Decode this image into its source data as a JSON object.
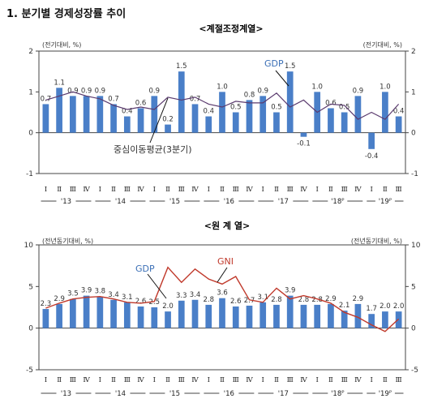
{
  "heading": "1. 분기별 경제성장률 추이",
  "chart_data": [
    {
      "type": "bar",
      "title": "<계절조정계열>",
      "ylabel_left": "(전기대비, %)",
      "ylabel_right": "(전기대비, %)",
      "ylim": [
        -1,
        2
      ],
      "yticks": [
        -1,
        0,
        1,
        2
      ],
      "grid": false,
      "quarter_labels": [
        "Ⅰ",
        "Ⅱ",
        "Ⅲ",
        "Ⅳ",
        "Ⅰ",
        "Ⅱ",
        "Ⅲ",
        "Ⅳ",
        "Ⅰ",
        "Ⅱ",
        "Ⅲ",
        "Ⅳ",
        "Ⅰ",
        "Ⅱ",
        "Ⅲ",
        "Ⅳ",
        "Ⅰ",
        "Ⅱ",
        "Ⅲ",
        "Ⅳ",
        "Ⅰ",
        "Ⅱ",
        "Ⅲ",
        "Ⅳ",
        "Ⅰ",
        "Ⅱ",
        "Ⅲ"
      ],
      "year_labels": [
        "'13",
        "'14",
        "'15",
        "'16",
        "'17",
        "'18ᴾ",
        "'19ᴾ"
      ],
      "series": [
        {
          "name": "GDP",
          "kind": "bar",
          "color": "#4a7fc8",
          "values": [
            0.7,
            1.1,
            0.9,
            0.9,
            0.9,
            0.7,
            0.4,
            0.6,
            0.9,
            0.2,
            1.5,
            0.7,
            0.4,
            1.0,
            0.5,
            0.8,
            0.9,
            0.5,
            1.5,
            -0.1,
            1.0,
            0.6,
            0.5,
            0.9,
            -0.4,
            1.0,
            0.4
          ]
        },
        {
          "name": "중심이동평균(3분기)",
          "kind": "line",
          "color": "#5a3a6e",
          "values": [
            0.8,
            0.9,
            1.0,
            0.9,
            0.83,
            0.67,
            0.57,
            0.63,
            0.57,
            0.87,
            0.8,
            0.87,
            0.7,
            0.63,
            0.77,
            0.73,
            0.73,
            0.97,
            0.63,
            0.8,
            0.5,
            0.7,
            0.67,
            0.33,
            0.5,
            0.33,
            0.7
          ]
        }
      ],
      "annotations": {
        "bar_series": "GDP",
        "line_series": "중심이동평균(3분기)"
      }
    },
    {
      "type": "bar",
      "title": "<원 계 열>",
      "ylabel_left": "(전년동기대비, %)",
      "ylabel_right": "(전년동기대비, %)",
      "ylim": [
        -5,
        10
      ],
      "yticks": [
        -5,
        0,
        5,
        10
      ],
      "grid": false,
      "quarter_labels": [
        "Ⅰ",
        "Ⅱ",
        "Ⅲ",
        "Ⅳ",
        "Ⅰ",
        "Ⅱ",
        "Ⅲ",
        "Ⅳ",
        "Ⅰ",
        "Ⅱ",
        "Ⅲ",
        "Ⅳ",
        "Ⅰ",
        "Ⅱ",
        "Ⅲ",
        "Ⅳ",
        "Ⅰ",
        "Ⅱ",
        "Ⅲ",
        "Ⅳ",
        "Ⅰ",
        "Ⅱ",
        "Ⅲ",
        "Ⅳ",
        "Ⅰ",
        "Ⅱ",
        "Ⅲ"
      ],
      "year_labels": [
        "'13",
        "'14",
        "'15",
        "'16",
        "'17",
        "'18ᴾ",
        "'19ᴾ"
      ],
      "series": [
        {
          "name": "GDP",
          "kind": "bar",
          "color": "#4a7fc8",
          "values": [
            2.3,
            2.9,
            3.5,
            3.9,
            3.8,
            3.4,
            3.1,
            2.6,
            2.5,
            2.0,
            3.3,
            3.4,
            2.8,
            3.6,
            2.6,
            2.7,
            3.1,
            2.8,
            3.9,
            2.8,
            2.8,
            2.9,
            2.1,
            2.9,
            1.7,
            2.0,
            2.0
          ]
        },
        {
          "name": "GNI",
          "kind": "line",
          "color": "#c0392b",
          "values": [
            2.4,
            3.0,
            3.5,
            3.7,
            3.8,
            3.5,
            3.1,
            3.0,
            3.2,
            7.3,
            5.5,
            7.1,
            5.9,
            5.3,
            6.2,
            3.4,
            3.1,
            4.8,
            3.5,
            3.9,
            3.5,
            3.0,
            1.9,
            1.3,
            0.4,
            -0.4,
            1.1
          ]
        }
      ],
      "annotations": {
        "bar_series": "GDP",
        "line_series": "GNI"
      }
    }
  ]
}
